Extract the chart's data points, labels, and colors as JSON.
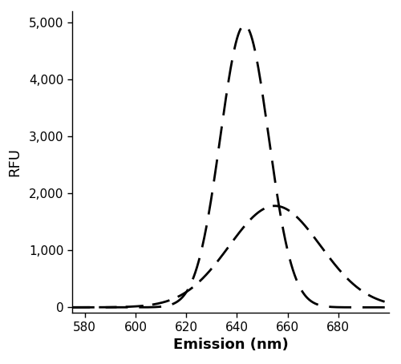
{
  "title": "",
  "xlabel": "Emission (nm)",
  "ylabel": "RFU",
  "xlim": [
    575,
    700
  ],
  "ylim": [
    -100,
    5200
  ],
  "ylim_display": [
    0,
    5000
  ],
  "xticks": [
    580,
    600,
    620,
    640,
    660,
    680
  ],
  "yticks": [
    0,
    1000,
    2000,
    3000,
    4000,
    5000
  ],
  "ytick_labels": [
    "0",
    "1,000",
    "2,000",
    "3,000",
    "4,000",
    "5,000"
  ],
  "curve1": {
    "peak": 643,
    "amplitude": 4950,
    "sigma": 9.5,
    "color": "#000000",
    "linewidth": 2.0,
    "dash_on": 10,
    "dash_off": 5
  },
  "curve2": {
    "peak": 655,
    "amplitude": 1780,
    "sigma": 18,
    "color": "#000000",
    "linewidth": 2.0,
    "dash_on": 8,
    "dash_off": 4
  },
  "background_color": "#ffffff",
  "figsize": [
    5.0,
    4.54
  ],
  "dpi": 100
}
